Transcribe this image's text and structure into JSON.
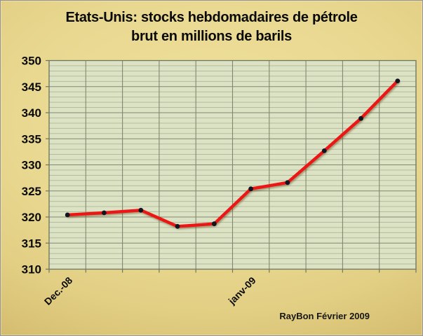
{
  "title": {
    "line1": "Etats-Unis: stocks hebdomadaires de pétrole",
    "line2": "brut en millions de barils"
  },
  "attribution": "RayBon Février 2009",
  "colors": {
    "background_gold_light": "#eee09d",
    "background_gold_dark": "#9e8038",
    "plot_background": "#dce3c5",
    "major_gridline": "#82876f",
    "minor_gridline": "#afb597",
    "axis_line": "#6f7561",
    "series_line": "#ec1212",
    "marker": "#141420",
    "text": "#0a0a0a"
  },
  "chart_data": {
    "type": "line",
    "title": "Etats-Unis: stocks hebdomadaires de pétrole brut en millions de barils",
    "categories": [
      "Dec.-08",
      "",
      "",
      "",
      "",
      "janv-09",
      "",
      "",
      "",
      ""
    ],
    "values": [
      320.4,
      320.8,
      321.3,
      318.2,
      318.7,
      325.4,
      326.6,
      332.7,
      338.9,
      346.1
    ],
    "series_name": "Stocks de pétrole brut (millions de barils)",
    "xlabel": "",
    "ylabel": "",
    "ylim": [
      310,
      350
    ],
    "y_major_step": 5,
    "y_minor_step": 1,
    "y_tick_labels": [
      "350",
      "345",
      "340",
      "335",
      "330",
      "325",
      "320",
      "315",
      "310"
    ],
    "x_tick_labels": [
      {
        "index": 0,
        "label": "Dec.-08"
      },
      {
        "index": 5,
        "label": "janv-09"
      }
    ],
    "grid": true,
    "legend": "none"
  }
}
